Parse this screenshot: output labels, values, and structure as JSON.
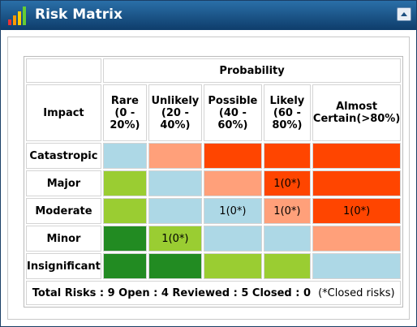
{
  "header": {
    "title": "Risk Matrix"
  },
  "table": {
    "corner": "Impact",
    "group_header": "Probability",
    "columns": [
      "Rare (0 - 20%)",
      "Unlikely (20 - 40%)",
      "Possible (40 - 60%)",
      "Likely (60 - 80%)",
      "Almost Certain(>80%)"
    ],
    "rows": [
      {
        "impact": "Catastropic",
        "cells": [
          {
            "color": "#add8e6"
          },
          {
            "color": "#ffa07a"
          },
          {
            "color": "#ff4500"
          },
          {
            "color": "#ff4500"
          },
          {
            "color": "#ff4500"
          }
        ]
      },
      {
        "impact": "Major",
        "cells": [
          {
            "color": "#9acd32"
          },
          {
            "color": "#add8e6"
          },
          {
            "color": "#ffa07a"
          },
          {
            "color": "#ff4500",
            "text": "1(0*)"
          },
          {
            "color": "#ff4500"
          }
        ]
      },
      {
        "impact": "Moderate",
        "cells": [
          {
            "color": "#9acd32"
          },
          {
            "color": "#add8e6"
          },
          {
            "color": "#add8e6",
            "text": "1(0*)"
          },
          {
            "color": "#ffa07a",
            "text": "1(0*)"
          },
          {
            "color": "#ff4500",
            "text": "1(0*)"
          }
        ]
      },
      {
        "impact": "Minor",
        "cells": [
          {
            "color": "#228b22"
          },
          {
            "color": "#9acd32",
            "text": "1(0*)"
          },
          {
            "color": "#add8e6"
          },
          {
            "color": "#add8e6"
          },
          {
            "color": "#ffa07a"
          }
        ]
      },
      {
        "impact": "Insignificant",
        "cells": [
          {
            "color": "#228b22"
          },
          {
            "color": "#228b22"
          },
          {
            "color": "#9acd32"
          },
          {
            "color": "#9acd32"
          },
          {
            "color": "#add8e6"
          }
        ]
      }
    ],
    "footer": {
      "summary": "Total Risks : 9 Open : 4 Reviewed : 5 Closed : 0",
      "note": "(*Closed risks)"
    }
  }
}
